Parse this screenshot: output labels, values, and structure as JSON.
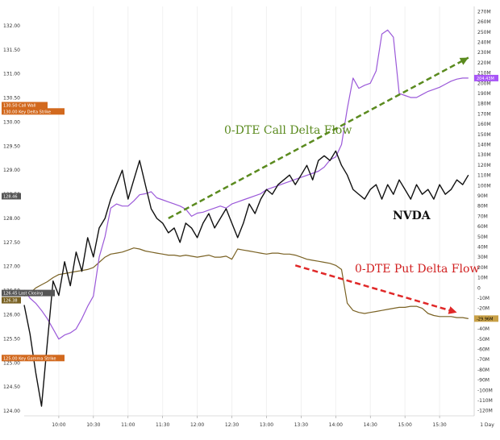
{
  "chart_data": {
    "type": "line",
    "x_ticks": [
      "10:00",
      "10:30",
      "11:00",
      "11:30",
      "12:00",
      "12:30",
      "13:00",
      "13:30",
      "14:00",
      "14:30",
      "15:00",
      "15:30"
    ],
    "x_end_label": "1 Day",
    "left_axis": {
      "ylim": [
        123.9,
        132.4
      ],
      "ticks": [
        "132.00",
        "131.50",
        "131.00",
        "130.50",
        "130.00",
        "129.50",
        "129.00",
        "128.50",
        "128.00",
        "127.50",
        "127.00",
        "126.50",
        "126.00",
        "125.50",
        "125.00",
        "124.50",
        "124.00"
      ]
    },
    "right_axis": {
      "ylim": [
        -125,
        275
      ],
      "ticks": [
        "270M",
        "260M",
        "250M",
        "240M",
        "230M",
        "220M",
        "210M",
        "200M",
        "190M",
        "180M",
        "170M",
        "160M",
        "150M",
        "140M",
        "130M",
        "120M",
        "110M",
        "100M",
        "90M",
        "80M",
        "70M",
        "60M",
        "50M",
        "40M",
        "30M",
        "20M",
        "10M",
        "0",
        "-10M",
        "-20M",
        "-30M",
        "-40M",
        "-50M",
        "-60M",
        "-70M",
        "-80M",
        "-90M",
        "-100M",
        "-110M",
        "-120M"
      ]
    },
    "series": [
      {
        "name": "NVDA",
        "axis": "left",
        "color": "#111111",
        "x": [
          "09:30",
          "09:35",
          "09:40",
          "09:45",
          "09:50",
          "09:55",
          "10:00",
          "10:05",
          "10:10",
          "10:15",
          "10:20",
          "10:25",
          "10:30",
          "10:35",
          "10:40",
          "10:45",
          "10:50",
          "10:55",
          "11:00",
          "11:05",
          "11:10",
          "11:15",
          "11:20",
          "11:25",
          "11:30",
          "11:35",
          "11:40",
          "11:45",
          "11:50",
          "11:55",
          "12:00",
          "12:05",
          "12:10",
          "12:15",
          "12:20",
          "12:25",
          "12:30",
          "12:35",
          "12:40",
          "12:45",
          "12:50",
          "12:55",
          "13:00",
          "13:05",
          "13:10",
          "13:15",
          "13:20",
          "13:25",
          "13:30",
          "13:35",
          "13:40",
          "13:45",
          "13:50",
          "13:55",
          "14:00",
          "14:05",
          "14:10",
          "14:15",
          "14:20",
          "14:25",
          "14:30",
          "14:35",
          "14:40",
          "14:45",
          "14:50",
          "14:55",
          "15:00",
          "15:05",
          "15:10",
          "15:15",
          "15:20",
          "15:25",
          "15:30",
          "15:35",
          "15:40",
          "15:45",
          "15:50",
          "15:55"
        ],
        "values": [
          126.2,
          125.6,
          124.8,
          124.1,
          125.4,
          126.7,
          126.4,
          127.1,
          126.6,
          127.3,
          126.9,
          127.6,
          127.2,
          127.8,
          128.0,
          128.4,
          128.7,
          129.0,
          128.4,
          128.8,
          129.2,
          128.7,
          128.2,
          128.0,
          127.9,
          127.7,
          127.8,
          127.5,
          127.9,
          127.8,
          127.6,
          127.9,
          128.1,
          127.8,
          128.0,
          128.2,
          127.9,
          127.6,
          127.9,
          128.3,
          128.1,
          128.4,
          128.6,
          128.5,
          128.7,
          128.8,
          128.9,
          128.7,
          128.9,
          129.1,
          128.8,
          129.2,
          129.3,
          129.2,
          129.4,
          129.1,
          128.9,
          128.6,
          128.5,
          128.4,
          128.6,
          128.7,
          128.4,
          128.7,
          128.5,
          128.8,
          128.6,
          128.4,
          128.7,
          128.5,
          128.6,
          128.4,
          128.7,
          128.5,
          128.6,
          128.8,
          128.7,
          128.9
        ]
      },
      {
        "name": "0-DTE Call Delta Flow",
        "axis": "right",
        "color": "#9b59d9",
        "x": [
          "09:30",
          "09:35",
          "09:40",
          "09:45",
          "09:50",
          "09:55",
          "10:00",
          "10:05",
          "10:10",
          "10:15",
          "10:20",
          "10:25",
          "10:30",
          "10:35",
          "10:40",
          "10:45",
          "10:50",
          "10:55",
          "11:00",
          "11:05",
          "11:10",
          "11:15",
          "11:20",
          "11:25",
          "11:30",
          "11:35",
          "11:40",
          "11:45",
          "11:50",
          "11:55",
          "12:00",
          "12:05",
          "12:10",
          "12:15",
          "12:20",
          "12:25",
          "12:30",
          "12:35",
          "12:40",
          "12:45",
          "12:50",
          "12:55",
          "13:00",
          "13:05",
          "13:10",
          "13:15",
          "13:20",
          "13:25",
          "13:30",
          "13:35",
          "13:40",
          "13:45",
          "13:50",
          "13:55",
          "14:00",
          "14:05",
          "14:10",
          "14:15",
          "14:20",
          "14:25",
          "14:30",
          "14:35",
          "14:40",
          "14:45",
          "14:50",
          "14:55",
          "15:00",
          "15:05",
          "15:10",
          "15:15",
          "15:20",
          "15:25",
          "15:30",
          "15:35",
          "15:40",
          "15:45",
          "15:50",
          "15:55"
        ],
        "values": [
          -2,
          -10,
          -15,
          -22,
          -30,
          -40,
          -50,
          -46,
          -44,
          -40,
          -30,
          -18,
          -8,
          30,
          50,
          78,
          82,
          80,
          80,
          85,
          91,
          92,
          94,
          88,
          86,
          84,
          82,
          80,
          77,
          70,
          73,
          74,
          76,
          78,
          80,
          78,
          82,
          84,
          86,
          88,
          90,
          92,
          96,
          98,
          100,
          102,
          104,
          106,
          108,
          110,
          112,
          114,
          118,
          125,
          128,
          140,
          175,
          205,
          195,
          198,
          200,
          212,
          248,
          252,
          245,
          190,
          188,
          186,
          186,
          189,
          192,
          194,
          196,
          199,
          202,
          204,
          205,
          205
        ]
      },
      {
        "name": "0-DTE Put Delta Flow",
        "axis": "right",
        "color": "#7a6224",
        "x": [
          "09:30",
          "09:35",
          "09:40",
          "09:45",
          "09:50",
          "09:55",
          "10:00",
          "10:05",
          "10:10",
          "10:15",
          "10:20",
          "10:25",
          "10:30",
          "10:35",
          "10:40",
          "10:45",
          "10:50",
          "10:55",
          "11:00",
          "11:05",
          "11:10",
          "11:15",
          "11:20",
          "11:25",
          "11:30",
          "11:35",
          "11:40",
          "11:45",
          "11:50",
          "11:55",
          "12:00",
          "12:05",
          "12:10",
          "12:15",
          "12:20",
          "12:25",
          "12:30",
          "12:35",
          "12:40",
          "12:45",
          "12:50",
          "12:55",
          "13:00",
          "13:05",
          "13:10",
          "13:15",
          "13:20",
          "13:25",
          "13:30",
          "13:35",
          "13:40",
          "13:45",
          "13:50",
          "13:55",
          "14:00",
          "14:05",
          "14:10",
          "14:15",
          "14:20",
          "14:25",
          "14:30",
          "14:35",
          "14:40",
          "14:45",
          "14:50",
          "14:55",
          "15:00",
          "15:05",
          "15:10",
          "15:15",
          "15:20",
          "15:25",
          "15:30",
          "15:35",
          "15:40",
          "15:45",
          "15:50",
          "15:55"
        ],
        "values": [
          -8,
          -5,
          0,
          3,
          6,
          10,
          13,
          14,
          15,
          16,
          17,
          18,
          20,
          25,
          30,
          33,
          34,
          35,
          37,
          39,
          38,
          36,
          35,
          34,
          33,
          32,
          32,
          31,
          32,
          31,
          30,
          31,
          32,
          30,
          30,
          31,
          28,
          38,
          37,
          36,
          35,
          34,
          33,
          34,
          34,
          33,
          33,
          32,
          30,
          28,
          27,
          26,
          25,
          24,
          22,
          18,
          -15,
          -22,
          -24,
          -25,
          -24,
          -23,
          -22,
          -21,
          -20,
          -19,
          -19,
          -18,
          -18,
          -20,
          -25,
          -27,
          -28,
          -28,
          -28,
          -29,
          -29,
          -30
        ]
      }
    ],
    "tags": [
      {
        "label": "130.50  Call Wall",
        "axis": "left",
        "y": 130.35,
        "color": "#d2691e",
        "text_color": "#ffffff"
      },
      {
        "label": "130.00  Key Delta Strike",
        "axis": "left",
        "y": 130.22,
        "color": "#d2691e",
        "text_color": "#ffffff"
      },
      {
        "label": "128.46",
        "axis": "left",
        "y": 128.46,
        "color": "#555555",
        "text_color": "#ffffff"
      },
      {
        "label": "126.45  Last Closing",
        "axis": "left",
        "y": 126.45,
        "color": "#555555",
        "text_color": "#ffffff"
      },
      {
        "label": "126.38",
        "axis": "left",
        "y": 126.3,
        "color": "#7a6224",
        "text_color": "#ffffff"
      },
      {
        "label": "125.00  Key Gamma Strike",
        "axis": "left",
        "y": 125.1,
        "color": "#d2691e",
        "text_color": "#ffffff"
      },
      {
        "label": "204.43M",
        "axis": "right",
        "y": 205,
        "color": "#a855f7",
        "text_color": "#ffffff"
      },
      {
        "label": "-29.96M",
        "axis": "right",
        "y": -30,
        "color": "#c8a046",
        "text_color": "#000000"
      }
    ],
    "annotations": [
      {
        "text": "0-DTE Call Delta Flow",
        "color": "#5a8a1e"
      },
      {
        "text": "NVDA",
        "color": "#111111"
      },
      {
        "text": "0-DTE Put Delta Flow",
        "color": "#d11f1f"
      }
    ],
    "arrows": [
      {
        "color": "#5a8a1e",
        "from": [
          "11:35",
          68
        ],
        "to": [
          "15:55",
          225
        ]
      },
      {
        "color": "#e02828",
        "from": [
          "13:25",
          22
        ],
        "to": [
          "15:45",
          -24
        ]
      }
    ],
    "grid": false,
    "legend": "none"
  }
}
